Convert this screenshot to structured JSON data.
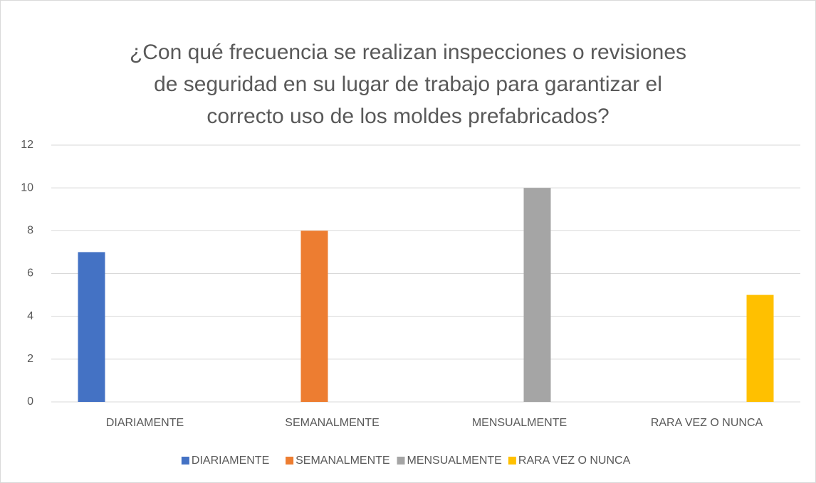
{
  "chart_data": {
    "type": "bar",
    "title": [
      "¿Con qué frecuencia se realizan inspecciones o revisiones",
      "de seguridad en su lugar de trabajo para garantizar el",
      "correcto uso de los moldes prefabricados?"
    ],
    "categories": [
      "DIARIAMENTE",
      "SEMANALMENTE",
      "MENSUALMENTE",
      "RARA VEZ O NUNCA"
    ],
    "series": [
      {
        "name": "DIARIAMENTE",
        "color": "#4472c4",
        "values": [
          7,
          null,
          null,
          null
        ]
      },
      {
        "name": "SEMANALMENTE",
        "color": "#ed7d31",
        "values": [
          null,
          8,
          null,
          null
        ]
      },
      {
        "name": "MENSUALMENTE",
        "color": "#a5a5a5",
        "values": [
          null,
          null,
          10,
          null
        ]
      },
      {
        "name": "RARA VEZ O NUNCA",
        "color": "#ffc000",
        "values": [
          null,
          null,
          null,
          5
        ]
      }
    ],
    "ylim": [
      0,
      12
    ],
    "yticks": [
      0,
      2,
      4,
      6,
      8,
      10,
      12
    ],
    "grid": true,
    "legend": "bottom"
  }
}
